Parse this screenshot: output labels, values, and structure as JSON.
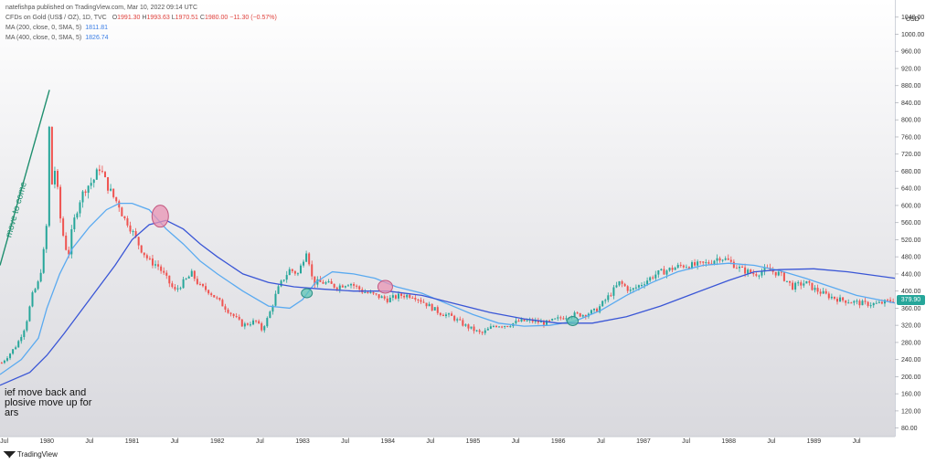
{
  "header": {
    "publisher": "natefishpa published on TradingView.com, Mar 10, 2022 09:14 UTC",
    "symbol": "CFDs on Gold (US$ / OZ), 1D, TVC",
    "open_label": "O",
    "open": "1991.30",
    "high_label": "H",
    "high": "1993.63",
    "low_label": "L",
    "low": "1970.51",
    "close_label": "C",
    "close": "1980.00",
    "change": "−11.30 (−0.57%)",
    "ma1_label": "MA (200, close, 0, SMA, 5)",
    "ma1_value": "1811.81",
    "ma2_label": "MA (400, close, 0, SMA, 5)",
    "ma2_value": "1826.74"
  },
  "annotations": {
    "trend_text": "move to come",
    "note_text": "ief move back and\nplosive move up for\nars"
  },
  "price_axis": {
    "currency": "USD",
    "last_price": "379.90"
  },
  "footer": {
    "brand": "TradingView"
  },
  "colors": {
    "up": "#26a69a",
    "down": "#ef5350",
    "ma200": "#5aaaf0",
    "ma400": "#3a56d6",
    "trendline": "#1f8f6f",
    "marker_pink": "#e893b3",
    "marker_teal": "#5ec4b6"
  },
  "chart_data": {
    "type": "line",
    "title": "CFDs on Gold (US$ / OZ), 1D, TVC",
    "ylim": [
      60,
      1080
    ],
    "yticks": [
      80,
      120,
      160,
      200,
      240,
      280,
      320,
      360,
      400,
      440,
      480,
      520,
      560,
      600,
      640,
      680,
      720,
      760,
      800,
      840,
      880,
      920,
      960,
      1000,
      1040
    ],
    "x_range": [
      1979.45,
      1989.95
    ],
    "xticks": [
      {
        "label": "Jul",
        "x": 1979.5
      },
      {
        "label": "1980",
        "x": 1980.0
      },
      {
        "label": "Jul",
        "x": 1980.5
      },
      {
        "label": "1981",
        "x": 1981.0
      },
      {
        "label": "Jul",
        "x": 1981.5
      },
      {
        "label": "1982",
        "x": 1982.0
      },
      {
        "label": "Jul",
        "x": 1982.5
      },
      {
        "label": "1983",
        "x": 1983.0
      },
      {
        "label": "Jul",
        "x": 1983.5
      },
      {
        "label": "1984",
        "x": 1984.0
      },
      {
        "label": "Jul",
        "x": 1984.5
      },
      {
        "label": "1985",
        "x": 1985.0
      },
      {
        "label": "Jul",
        "x": 1985.5
      },
      {
        "label": "1986",
        "x": 1986.0
      },
      {
        "label": "Jul",
        "x": 1986.5
      },
      {
        "label": "1987",
        "x": 1987.0
      },
      {
        "label": "Jul",
        "x": 1987.5
      },
      {
        "label": "1988",
        "x": 1988.0
      },
      {
        "label": "Jul",
        "x": 1988.5
      },
      {
        "label": "1989",
        "x": 1989.0
      },
      {
        "label": "Jul",
        "x": 1989.5
      }
    ],
    "price": [
      [
        1979.45,
        228
      ],
      [
        1979.55,
        250
      ],
      [
        1979.65,
        275
      ],
      [
        1979.75,
        320
      ],
      [
        1979.83,
        390
      ],
      [
        1979.9,
        420
      ],
      [
        1979.95,
        470
      ],
      [
        1980.0,
        560
      ],
      [
        1980.03,
        800
      ],
      [
        1980.06,
        650
      ],
      [
        1980.1,
        690
      ],
      [
        1980.15,
        580
      ],
      [
        1980.2,
        520
      ],
      [
        1980.25,
        480
      ],
      [
        1980.3,
        550
      ],
      [
        1980.38,
        610
      ],
      [
        1980.45,
        640
      ],
      [
        1980.55,
        660
      ],
      [
        1980.62,
        690
      ],
      [
        1980.7,
        650
      ],
      [
        1980.78,
        620
      ],
      [
        1980.85,
        600
      ],
      [
        1980.9,
        570
      ],
      [
        1980.95,
        560
      ],
      [
        1981.0,
        540
      ],
      [
        1981.1,
        500
      ],
      [
        1981.2,
        470
      ],
      [
        1981.3,
        460
      ],
      [
        1981.4,
        430
      ],
      [
        1981.5,
        400
      ],
      [
        1981.6,
        420
      ],
      [
        1981.7,
        440
      ],
      [
        1981.8,
        410
      ],
      [
        1981.9,
        400
      ],
      [
        1982.0,
        380
      ],
      [
        1982.15,
        350
      ],
      [
        1982.3,
        320
      ],
      [
        1982.45,
        330
      ],
      [
        1982.52,
        310
      ],
      [
        1982.6,
        340
      ],
      [
        1982.7,
        400
      ],
      [
        1982.78,
        430
      ],
      [
        1982.85,
        450
      ],
      [
        1982.95,
        440
      ],
      [
        1983.05,
        500
      ],
      [
        1983.12,
        420
      ],
      [
        1983.25,
        420
      ],
      [
        1983.4,
        410
      ],
      [
        1983.55,
        420
      ],
      [
        1983.7,
        400
      ],
      [
        1983.85,
        390
      ],
      [
        1984.0,
        380
      ],
      [
        1984.15,
        390
      ],
      [
        1984.3,
        390
      ],
      [
        1984.45,
        370
      ],
      [
        1984.6,
        350
      ],
      [
        1984.75,
        340
      ],
      [
        1984.9,
        320
      ],
      [
        1985.0,
        310
      ],
      [
        1985.1,
        300
      ],
      [
        1985.25,
        320
      ],
      [
        1985.4,
        320
      ],
      [
        1985.55,
        330
      ],
      [
        1985.7,
        330
      ],
      [
        1985.85,
        325
      ],
      [
        1986.0,
        335
      ],
      [
        1986.15,
        345
      ],
      [
        1986.3,
        345
      ],
      [
        1986.45,
        355
      ],
      [
        1986.6,
        390
      ],
      [
        1986.72,
        420
      ],
      [
        1986.85,
        400
      ],
      [
        1987.0,
        420
      ],
      [
        1987.15,
        440
      ],
      [
        1987.3,
        450
      ],
      [
        1987.45,
        460
      ],
      [
        1987.6,
        460
      ],
      [
        1987.75,
        465
      ],
      [
        1987.9,
        480
      ],
      [
        1988.0,
        470
      ],
      [
        1988.15,
        450
      ],
      [
        1988.3,
        440
      ],
      [
        1988.45,
        450
      ],
      [
        1988.6,
        440
      ],
      [
        1988.75,
        410
      ],
      [
        1988.9,
        420
      ],
      [
        1989.0,
        405
      ],
      [
        1989.15,
        390
      ],
      [
        1989.3,
        380
      ],
      [
        1989.45,
        375
      ],
      [
        1989.6,
        370
      ],
      [
        1989.75,
        370
      ],
      [
        1989.95,
        380
      ]
    ],
    "series": [
      {
        "name": "MA (200, close, 0, SMA, 5)",
        "values": [
          [
            1979.45,
            205
          ],
          [
            1979.7,
            240
          ],
          [
            1979.9,
            290
          ],
          [
            1980.0,
            360
          ],
          [
            1980.15,
            440
          ],
          [
            1980.3,
            500
          ],
          [
            1980.5,
            550
          ],
          [
            1980.7,
            590
          ],
          [
            1980.85,
            605
          ],
          [
            1981.0,
            605
          ],
          [
            1981.2,
            590
          ],
          [
            1981.4,
            545
          ],
          [
            1981.6,
            510
          ],
          [
            1981.8,
            470
          ],
          [
            1982.0,
            440
          ],
          [
            1982.3,
            400
          ],
          [
            1982.6,
            365
          ],
          [
            1982.85,
            360
          ],
          [
            1983.0,
            380
          ],
          [
            1983.15,
            420
          ],
          [
            1983.35,
            445
          ],
          [
            1983.6,
            440
          ],
          [
            1983.85,
            430
          ],
          [
            1984.1,
            410
          ],
          [
            1984.4,
            395
          ],
          [
            1984.7,
            370
          ],
          [
            1985.0,
            345
          ],
          [
            1985.3,
            325
          ],
          [
            1985.6,
            318
          ],
          [
            1985.9,
            320
          ],
          [
            1986.2,
            330
          ],
          [
            1986.5,
            355
          ],
          [
            1986.8,
            390
          ],
          [
            1987.1,
            420
          ],
          [
            1987.4,
            445
          ],
          [
            1987.7,
            460
          ],
          [
            1988.0,
            465
          ],
          [
            1988.3,
            460
          ],
          [
            1988.6,
            448
          ],
          [
            1988.9,
            430
          ],
          [
            1989.2,
            410
          ],
          [
            1989.5,
            390
          ],
          [
            1989.95,
            372
          ]
        ]
      },
      {
        "name": "MA (400, close, 0, SMA, 5)",
        "values": [
          [
            1979.45,
            180
          ],
          [
            1979.8,
            210
          ],
          [
            1980.0,
            250
          ],
          [
            1980.2,
            300
          ],
          [
            1980.5,
            380
          ],
          [
            1980.8,
            460
          ],
          [
            1981.0,
            520
          ],
          [
            1981.2,
            555
          ],
          [
            1981.4,
            565
          ],
          [
            1981.6,
            545
          ],
          [
            1981.8,
            510
          ],
          [
            1982.0,
            480
          ],
          [
            1982.3,
            440
          ],
          [
            1982.6,
            420
          ],
          [
            1982.9,
            410
          ],
          [
            1983.2,
            405
          ],
          [
            1983.6,
            400
          ],
          [
            1984.0,
            400
          ],
          [
            1984.4,
            390
          ],
          [
            1984.8,
            370
          ],
          [
            1985.2,
            350
          ],
          [
            1985.6,
            335
          ],
          [
            1986.0,
            325
          ],
          [
            1986.4,
            325
          ],
          [
            1986.8,
            340
          ],
          [
            1987.2,
            365
          ],
          [
            1987.6,
            395
          ],
          [
            1988.0,
            425
          ],
          [
            1988.3,
            445
          ],
          [
            1988.6,
            450
          ],
          [
            1989.0,
            452
          ],
          [
            1989.4,
            445
          ],
          [
            1989.95,
            430
          ]
        ]
      }
    ],
    "markers": [
      {
        "shape": "ellipse",
        "color": "pink",
        "x": 1981.33,
        "y": 575
      },
      {
        "shape": "ellipse",
        "color": "teal",
        "x": 1983.05,
        "y": 395
      },
      {
        "shape": "ellipse",
        "color": "pink",
        "x": 1983.97,
        "y": 410
      },
      {
        "shape": "ellipse",
        "color": "teal",
        "x": 1986.17,
        "y": 330
      }
    ],
    "trendline": {
      "from": [
        1979.45,
        460
      ],
      "to": [
        1980.03,
        870
      ]
    },
    "last_price": 379.9,
    "ylabel": "USD",
    "grid": false,
    "legend": "top-left"
  }
}
